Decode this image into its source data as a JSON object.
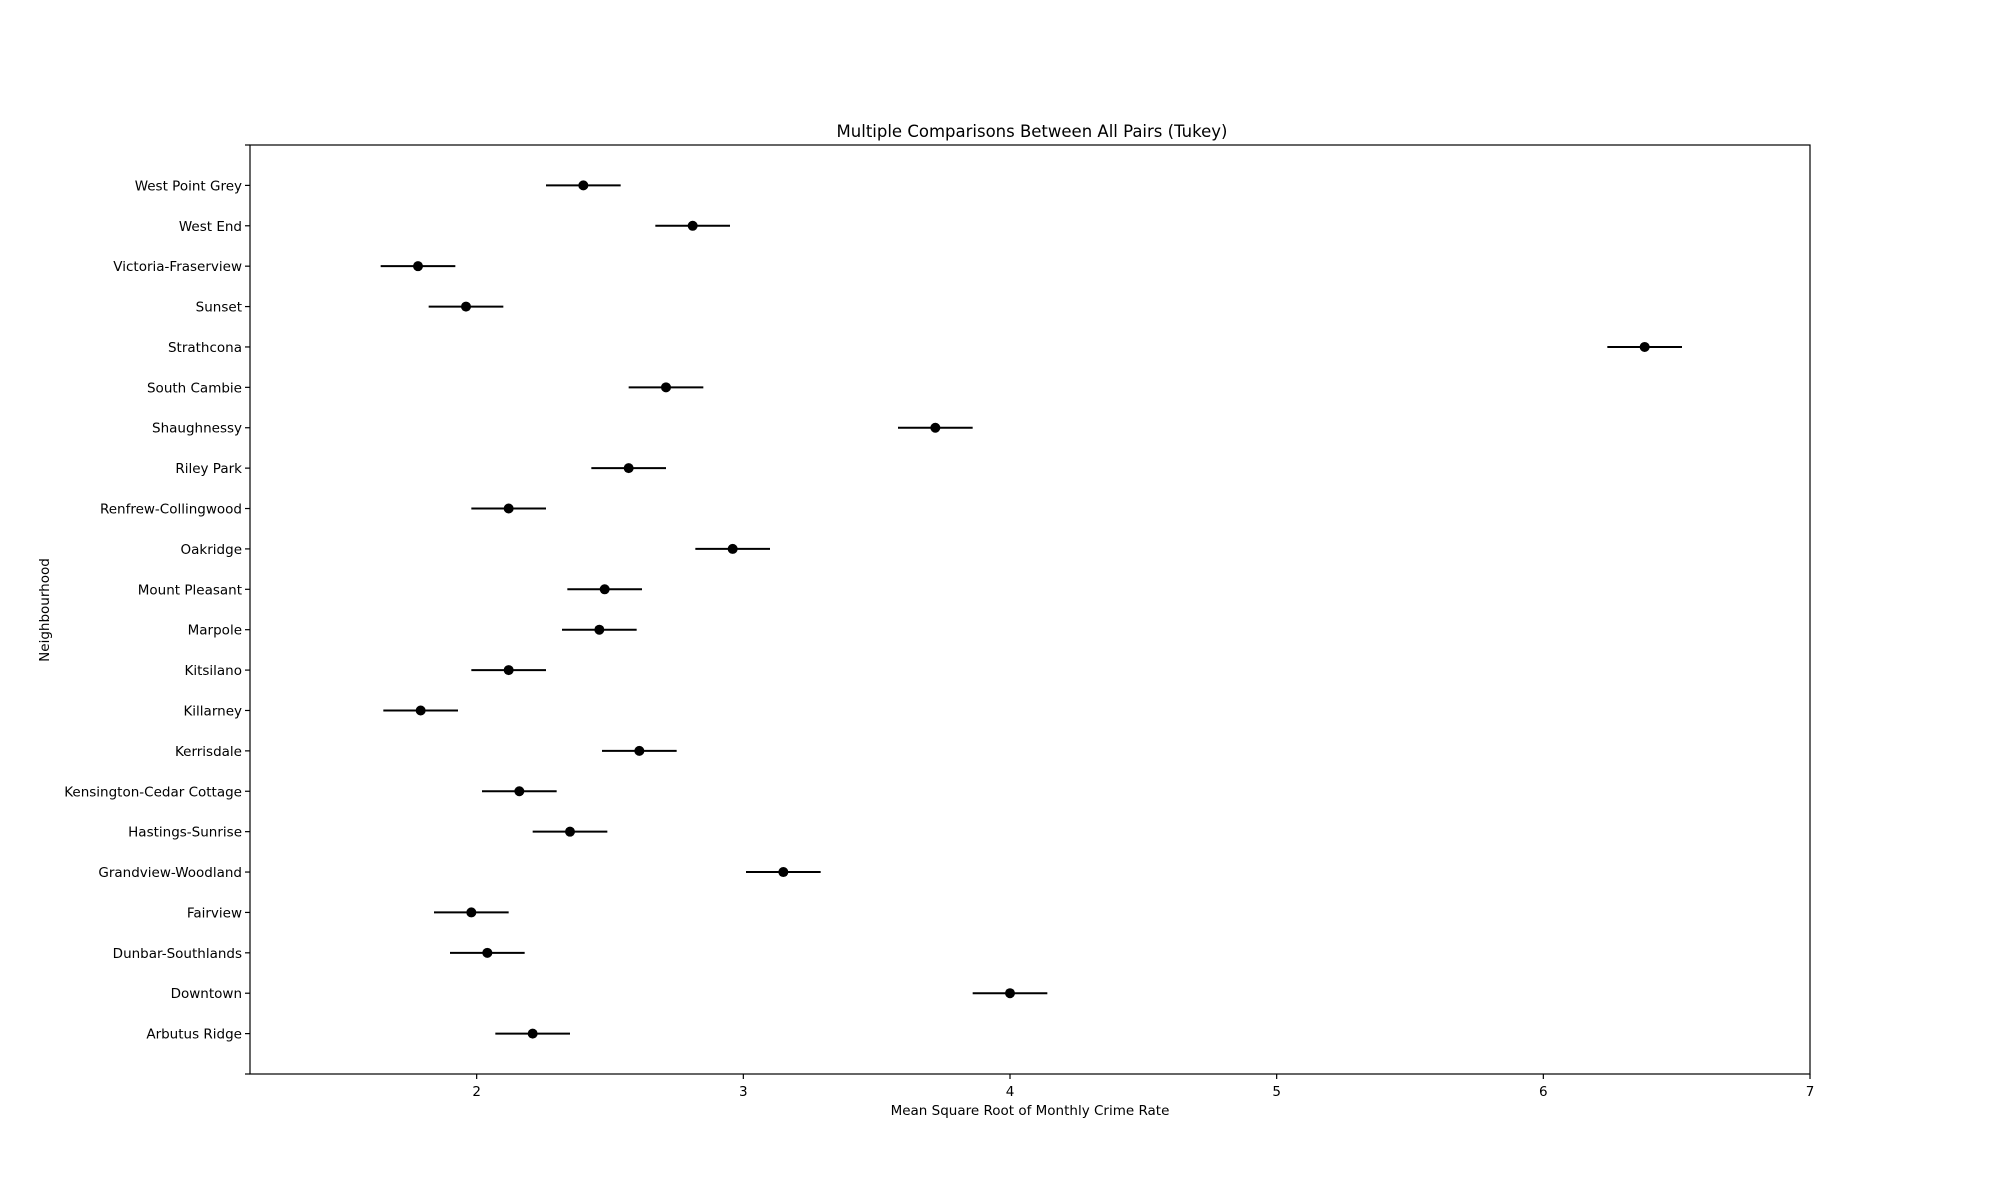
{
  "chart_data": {
    "type": "scatter",
    "title": "Multiple Comparisons Between All Pairs (Tukey)",
    "xlabel": "Mean Square Root of Monthly Crime Rate",
    "ylabel": "Neighbourhood",
    "xlim": [
      1.15,
      7.0
    ],
    "xticks": [
      2,
      3,
      4,
      5,
      6,
      7
    ],
    "categories": [
      "Arbutus Ridge",
      "Downtown",
      "Dunbar-Southlands",
      "Fairview",
      "Grandview-Woodland",
      "Hastings-Sunrise",
      "Kensington-Cedar Cottage",
      "Kerrisdale",
      "Killarney",
      "Kitsilano",
      "Marpole",
      "Mount Pleasant",
      "Oakridge",
      "Renfrew-Collingwood",
      "Riley Park",
      "Shaughnessy",
      "South Cambie",
      "Strathcona",
      "Sunset",
      "Victoria-Fraserview",
      "West End",
      "West Point Grey"
    ],
    "series": [
      {
        "values": [
          2.21,
          4.0,
          2.04,
          1.98,
          3.15,
          2.35,
          2.16,
          2.61,
          1.79,
          2.12,
          2.46,
          2.48,
          2.96,
          2.12,
          2.57,
          3.72,
          2.71,
          6.38,
          1.96,
          1.78,
          2.81,
          2.4
        ],
        "lower": [
          2.07,
          3.86,
          1.9,
          1.84,
          3.01,
          2.21,
          2.02,
          2.47,
          1.65,
          1.98,
          2.32,
          2.34,
          2.82,
          1.98,
          2.43,
          3.58,
          2.57,
          6.24,
          1.82,
          1.64,
          2.67,
          2.26
        ],
        "upper": [
          2.35,
          4.14,
          2.18,
          2.12,
          3.29,
          2.49,
          2.3,
          2.75,
          1.93,
          2.26,
          2.6,
          2.62,
          3.1,
          2.26,
          2.71,
          3.86,
          2.85,
          6.52,
          2.1,
          1.92,
          2.95,
          2.54
        ]
      }
    ],
    "grid": false,
    "colors": {
      "marker": "#000000",
      "errorbar": "#000000",
      "axes": "#000000"
    }
  }
}
